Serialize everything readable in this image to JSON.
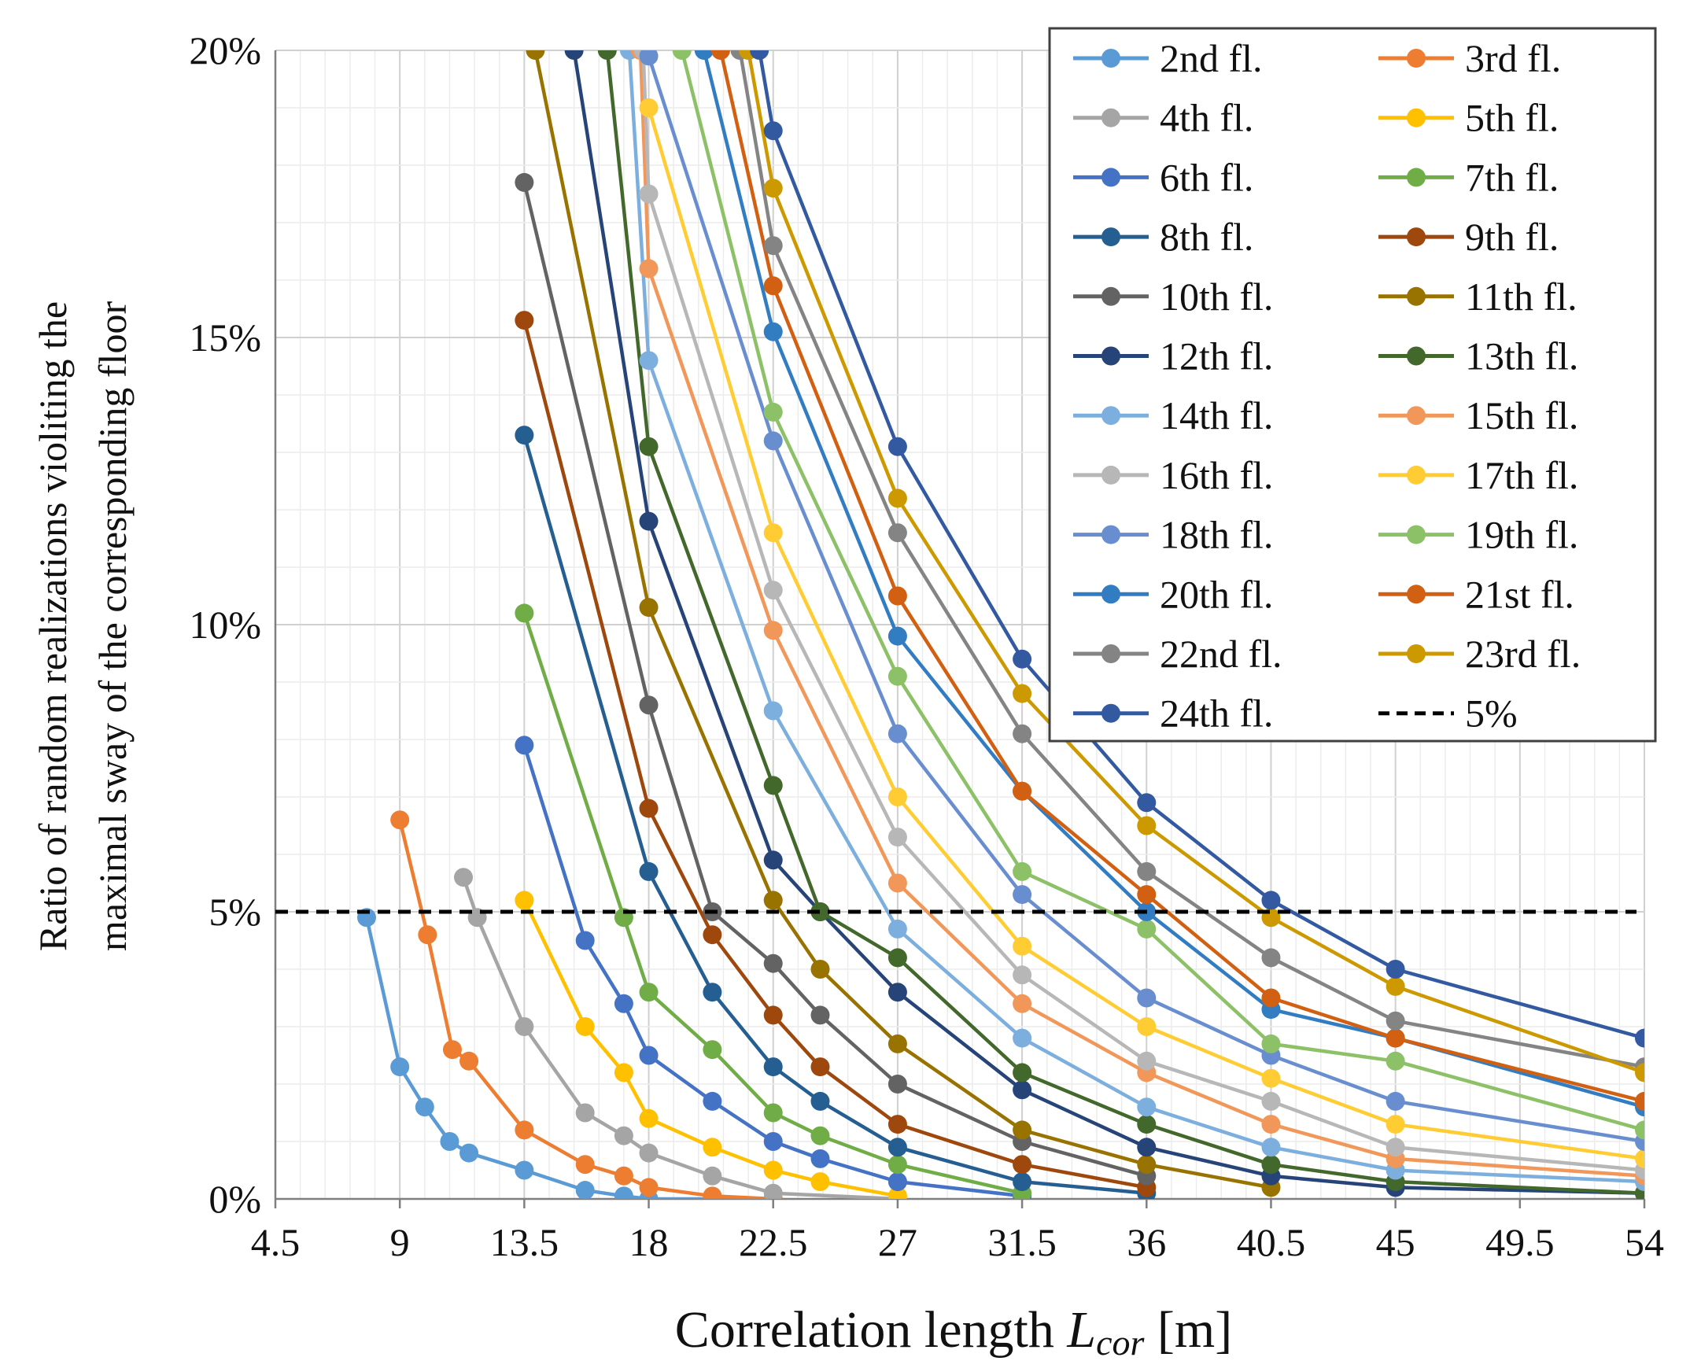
{
  "chart_data": {
    "type": "line",
    "title": "",
    "xlabel_main": "Correlation length ",
    "xlabel_var": "L",
    "xlabel_sub": "cor",
    "xlabel_unit": " [m]",
    "ylabel_line1": "Ratio of random realizations violiting the",
    "ylabel_line2": "maximal  sway of the corresponding floor",
    "xlim": [
      4.5,
      54
    ],
    "ylim": [
      0,
      20
    ],
    "x_ticks": [
      4.5,
      9,
      13.5,
      18,
      22.5,
      27,
      31.5,
      36,
      40.5,
      45,
      49.5,
      54
    ],
    "x_tick_labels": [
      "4.5",
      "9",
      "13.5",
      "18",
      "22.5",
      "27",
      "31.5",
      "36",
      "40.5",
      "45",
      "49.5",
      "54"
    ],
    "y_ticks": [
      0,
      5,
      10,
      15,
      20
    ],
    "y_tick_labels": [
      "0%",
      "5%",
      "10%",
      "15%",
      "20%"
    ],
    "threshold": {
      "name": "5%",
      "value": 5,
      "color": "#000000"
    },
    "legend_position": "top-right",
    "series": [
      {
        "name": "2nd fl.",
        "color": "#5B9BD5",
        "x": [
          7.8,
          9,
          9.9,
          10.8,
          11.5,
          13.5,
          15.7,
          17.1,
          18,
          20.3,
          22.5
        ],
        "values": [
          4.9,
          2.3,
          1.6,
          1.0,
          0.8,
          0.5,
          0.15,
          0.05,
          0.0,
          0.0,
          0.0
        ]
      },
      {
        "name": "3rd fl.",
        "color": "#ED7D31",
        "x": [
          9,
          10,
          10.9,
          11.5,
          13.5,
          15.7,
          17.1,
          18,
          20.3,
          22.5
        ],
        "values": [
          6.6,
          4.6,
          2.6,
          2.4,
          1.2,
          0.6,
          0.4,
          0.2,
          0.05,
          0.0
        ]
      },
      {
        "name": "4th fl.",
        "color": "#A5A5A5",
        "x": [
          11.3,
          11.8,
          13.5,
          15.7,
          17.1,
          18,
          20.3,
          22.5,
          27
        ],
        "values": [
          5.6,
          4.9,
          3.0,
          1.5,
          1.1,
          0.8,
          0.4,
          0.1,
          0.0
        ]
      },
      {
        "name": "5th fl.",
        "color": "#FFC000",
        "x": [
          13.5,
          15.7,
          17.1,
          18,
          20.3,
          22.5,
          24.2,
          27
        ],
        "values": [
          5.2,
          3.0,
          2.2,
          1.4,
          0.9,
          0.5,
          0.3,
          0.05
        ]
      },
      {
        "name": "6th fl.",
        "color": "#4472C4",
        "x": [
          13.5,
          15.7,
          17.1,
          18,
          20.3,
          22.5,
          24.2,
          27,
          31.5
        ],
        "values": [
          7.9,
          4.5,
          3.4,
          2.5,
          1.7,
          1.0,
          0.7,
          0.3,
          0.05
        ]
      },
      {
        "name": "7th fl.",
        "color": "#70AD47",
        "x": [
          13.5,
          17.1,
          18,
          20.3,
          22.5,
          24.2,
          27,
          31.5
        ],
        "values": [
          10.2,
          4.9,
          3.6,
          2.6,
          1.5,
          1.1,
          0.6,
          0.1
        ]
      },
      {
        "name": "8th fl.",
        "color": "#255E91",
        "x": [
          13.5,
          18,
          20.3,
          22.5,
          24.2,
          27,
          31.5,
          36
        ],
        "values": [
          13.3,
          5.7,
          3.6,
          2.3,
          1.7,
          0.9,
          0.3,
          0.1
        ]
      },
      {
        "name": "9th fl.",
        "color": "#9E480E",
        "x": [
          13.5,
          18,
          20.3,
          22.5,
          24.2,
          27,
          31.5,
          36
        ],
        "values": [
          15.3,
          6.8,
          4.6,
          3.2,
          2.3,
          1.3,
          0.6,
          0.2
        ]
      },
      {
        "name": "10th fl.",
        "color": "#636363",
        "x": [
          13.5,
          18,
          20.3,
          22.5,
          24.2,
          27,
          31.5,
          36
        ],
        "values": [
          17.7,
          8.6,
          5.0,
          4.1,
          3.2,
          2.0,
          1.0,
          0.4
        ]
      },
      {
        "name": "11th fl.",
        "color": "#997300",
        "x": [
          13.9,
          18,
          22.5,
          24.2,
          27,
          31.5,
          36,
          40.5
        ],
        "values": [
          20,
          10.3,
          5.2,
          4.0,
          2.7,
          1.2,
          0.6,
          0.2
        ]
      },
      {
        "name": "12th fl.",
        "color": "#264478",
        "x": [
          15.3,
          18,
          22.5,
          24.2,
          27,
          31.5,
          36,
          40.5,
          45,
          54
        ],
        "values": [
          20,
          11.8,
          5.9,
          5.0,
          3.6,
          1.9,
          0.9,
          0.4,
          0.2,
          0.1
        ]
      },
      {
        "name": "13th fl.",
        "color": "#43682B",
        "x": [
          16.5,
          18,
          22.5,
          24.2,
          27,
          31.5,
          36,
          40.5,
          45,
          54
        ],
        "values": [
          20,
          13.1,
          7.2,
          5.0,
          4.2,
          2.2,
          1.3,
          0.6,
          0.3,
          0.1
        ]
      },
      {
        "name": "14th fl.",
        "color": "#7CAFDD",
        "x": [
          17.3,
          18,
          22.5,
          27,
          31.5,
          36,
          40.5,
          45,
          54
        ],
        "values": [
          20,
          14.6,
          8.5,
          4.7,
          2.8,
          1.6,
          0.9,
          0.5,
          0.3
        ]
      },
      {
        "name": "15th fl.",
        "color": "#F1975A",
        "x": [
          17.7,
          18,
          22.5,
          27,
          31.5,
          36,
          40.5,
          45,
          54
        ],
        "values": [
          20,
          16.2,
          9.9,
          5.5,
          3.4,
          2.2,
          1.3,
          0.7,
          0.4
        ]
      },
      {
        "name": "16th fl.",
        "color": "#B7B7B7",
        "x": [
          17.8,
          18,
          22.5,
          27,
          31.5,
          36,
          40.5,
          45,
          54
        ],
        "values": [
          20,
          17.5,
          10.6,
          6.3,
          3.9,
          2.4,
          1.7,
          0.9,
          0.5
        ]
      },
      {
        "name": "17th fl.",
        "color": "#FFCD33",
        "x": [
          18,
          22.5,
          27,
          31.5,
          36,
          40.5,
          45,
          54
        ],
        "values": [
          19.0,
          11.6,
          7.0,
          4.4,
          3.0,
          2.1,
          1.3,
          0.7
        ]
      },
      {
        "name": "18th fl.",
        "color": "#698ED0",
        "x": [
          18,
          22.5,
          27,
          31.5,
          36,
          40.5,
          45,
          54
        ],
        "values": [
          19.9,
          13.2,
          8.1,
          5.3,
          3.5,
          2.5,
          1.7,
          1.0
        ]
      },
      {
        "name": "19th fl.",
        "color": "#8CC168",
        "x": [
          19.2,
          22.5,
          27,
          31.5,
          36,
          40.5,
          45,
          54
        ],
        "values": [
          20,
          13.7,
          9.1,
          5.7,
          4.7,
          2.7,
          2.4,
          1.2
        ]
      },
      {
        "name": "20th fl.",
        "color": "#327DC2",
        "x": [
          20.0,
          22.5,
          27,
          31.5,
          36,
          40.5,
          45,
          54
        ],
        "values": [
          20,
          15.1,
          9.8,
          7.1,
          5.0,
          3.3,
          2.8,
          1.6
        ]
      },
      {
        "name": "21st fl.",
        "color": "#D26012",
        "x": [
          20.6,
          22.5,
          27,
          31.5,
          36,
          40.5,
          45,
          54
        ],
        "values": [
          20,
          15.9,
          10.5,
          7.1,
          5.3,
          3.5,
          2.8,
          1.7
        ]
      },
      {
        "name": "22nd fl.",
        "color": "#848484",
        "x": [
          21.3,
          22.5,
          27,
          31.5,
          36,
          40.5,
          45,
          54
        ],
        "values": [
          20,
          16.6,
          11.6,
          8.1,
          5.7,
          4.2,
          3.1,
          2.3
        ]
      },
      {
        "name": "23rd fl.",
        "color": "#CC9A00",
        "x": [
          21.6,
          22.5,
          27,
          31.5,
          36,
          40.5,
          45,
          54
        ],
        "values": [
          20,
          17.6,
          12.2,
          8.8,
          6.5,
          4.9,
          3.7,
          2.2
        ]
      },
      {
        "name": "24th fl.",
        "color": "#335AA1",
        "x": [
          22.0,
          22.5,
          27,
          31.5,
          36,
          40.5,
          45,
          54
        ],
        "values": [
          20,
          18.6,
          13.1,
          9.4,
          6.9,
          5.2,
          4.0,
          2.8
        ]
      }
    ]
  }
}
